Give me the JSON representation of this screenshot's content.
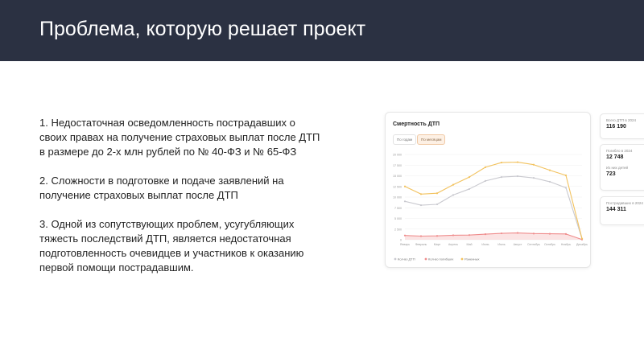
{
  "header": {
    "title": "Проблема, которую решает проект"
  },
  "problems": [
    "1. Недостаточная осведомленность пострадавших о\nсвоих правах на получение страховых выплат после ДТП\nв размере до 2-х млн рублей  по № 40-ФЗ и № 65-ФЗ",
    "2. Сложности в подготовке и подаче заявлений на\nполучение страховых выплат после ДТП",
    "3. Одной из сопутствующих проблем, усугубляющих\nтяжесть последствий ДТП, является недостаточная\nподготовленность очевидцев и участников к оказанию\nпервой помощи пострадавшим."
  ],
  "card": {
    "title": "Смертность ДТП",
    "tabs": [
      "По годам",
      "По месяцам"
    ],
    "active_tab": 1
  },
  "stats": [
    {
      "label": "Всего ДТП в 2024",
      "value": "116 190"
    },
    {
      "label": "Погибло в 2024",
      "value": "12 748",
      "label2": "Из них детей",
      "value2": "723"
    },
    {
      "label": "Пострадавших в 2024",
      "value": "144 311"
    }
  ],
  "chart_data": {
    "type": "line",
    "title": "Смертность ДТП",
    "categories": [
      "Январь",
      "Февраль",
      "Март",
      "Апрель",
      "Май",
      "Июнь",
      "Июль",
      "Август",
      "Сентябрь",
      "Октябрь",
      "Ноябрь",
      "Декабрь"
    ],
    "y_ticks": [
      "0",
      "2 500",
      "5 000",
      "7 500",
      "10 000",
      "12 500",
      "15 000",
      "17 500",
      "20 000"
    ],
    "ylim": [
      0,
      20000
    ],
    "grid": true,
    "legend_position": "bottom-left",
    "series": [
      {
        "name": "Кол-во ДТП",
        "color": "#c9c9cf",
        "values": [
          9000,
          8100,
          8300,
          10500,
          11900,
          13800,
          14700,
          14900,
          14500,
          13600,
          12200,
          200
        ]
      },
      {
        "name": "Кол-во погибших",
        "color": "#ef8c8c",
        "values": [
          1000,
          850,
          900,
          1050,
          1100,
          1300,
          1500,
          1600,
          1450,
          1400,
          1350,
          50
        ]
      },
      {
        "name": "Раненных",
        "color": "#f2c25e",
        "values": [
          12500,
          10700,
          10900,
          12900,
          14700,
          17000,
          18100,
          18200,
          17600,
          16300,
          15100,
          250
        ]
      }
    ]
  }
}
